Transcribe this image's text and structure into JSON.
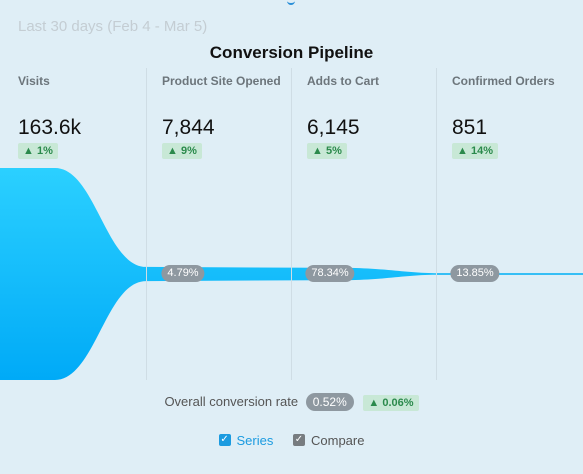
{
  "header": {
    "date_range": "Last 30 days (Feb 4 - Mar 5)",
    "title": "Conversion Pipeline"
  },
  "chart_data": {
    "type": "funnel",
    "title": "Conversion Pipeline",
    "stages": [
      {
        "label": "Visits",
        "value_text": "163.6k",
        "value": 163600,
        "change": "1%",
        "direction": "up"
      },
      {
        "label": "Product Site Opened",
        "value_text": "7,844",
        "value": 7844,
        "change": "9%",
        "direction": "up"
      },
      {
        "label": "Adds to Cart",
        "value_text": "6,145",
        "value": 6145,
        "change": "5%",
        "direction": "up"
      },
      {
        "label": "Confirmed Orders",
        "value_text": "851",
        "value": 851,
        "change": "14%",
        "direction": "up"
      }
    ],
    "step_rates": [
      "4.79%",
      "78.34%",
      "13.85%"
    ],
    "overall_conversion": {
      "label": "Overall conversion rate",
      "value": "0.52%",
      "change": "0.06%",
      "direction": "up"
    },
    "colors": {
      "funnel_top": "#2bd0ff",
      "funnel_bottom": "#00aaf7",
      "badge_bg": "#c8e8d6",
      "badge_text": "#2b8a4c",
      "pill_bg": "#8e98a0"
    }
  },
  "legend": [
    {
      "label": "Series",
      "checked": true,
      "color": "#1b9be0"
    },
    {
      "label": "Compare",
      "checked": true,
      "color": "#777c80"
    }
  ],
  "icons": {
    "up_arrow": "▲",
    "check": "✓"
  }
}
